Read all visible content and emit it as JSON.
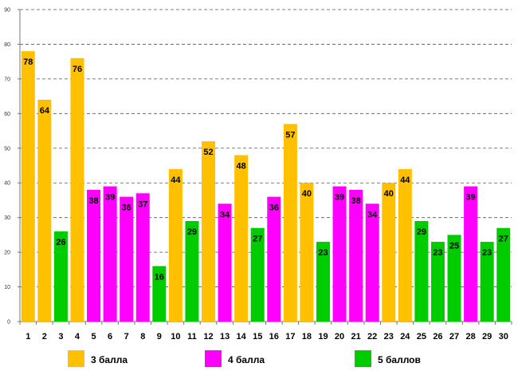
{
  "chart_data": {
    "type": "bar",
    "title": "",
    "xlabel": "",
    "ylabel": "",
    "ylim": [
      0,
      90
    ],
    "ytick_step": 10,
    "yticks": [
      "0",
      "10",
      "20",
      "30",
      "40",
      "50",
      "60",
      "70",
      "80",
      "90"
    ],
    "grid": true,
    "legend_position": "bottom",
    "categories": [
      "1",
      "2",
      "3",
      "4",
      "5",
      "6",
      "7",
      "8",
      "9",
      "10",
      "11",
      "12",
      "13",
      "14",
      "15",
      "16",
      "17",
      "18",
      "19",
      "20",
      "21",
      "22",
      "23",
      "24",
      "25",
      "26",
      "27",
      "28",
      "29",
      "30"
    ],
    "values": [
      78,
      64,
      26,
      76,
      38,
      39,
      36,
      37,
      16,
      44,
      29,
      52,
      34,
      48,
      27,
      36,
      57,
      40,
      23,
      39,
      38,
      34,
      40,
      44,
      29,
      23,
      25,
      39,
      23,
      27
    ],
    "series_index": [
      0,
      0,
      2,
      0,
      1,
      1,
      1,
      1,
      2,
      0,
      2,
      0,
      1,
      0,
      2,
      1,
      0,
      0,
      2,
      1,
      1,
      1,
      0,
      0,
      2,
      2,
      2,
      1,
      2,
      2
    ],
    "series": [
      {
        "name": "3 балла",
        "color": "#FFC000"
      },
      {
        "name": "4 балла",
        "color": "#FF00FF"
      },
      {
        "name": "5 баллов",
        "color": "#00CC00"
      }
    ]
  }
}
